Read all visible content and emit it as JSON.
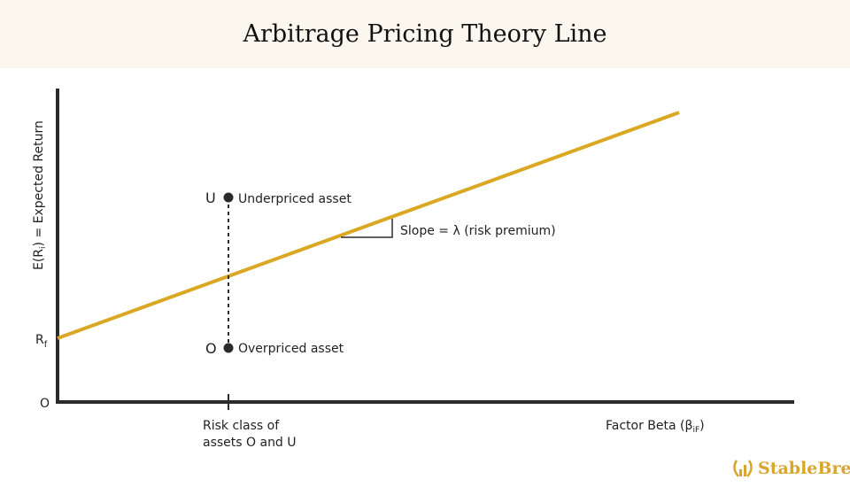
{
  "title": "Arbitrage Pricing Theory Line",
  "y_axis_label": "E(R",
  "y_axis_label_sub": "i",
  "y_axis_label_rest": ") = Expected Return",
  "x_axis_label": "Factor Beta (β",
  "x_axis_label_sub": "iF",
  "x_axis_label_rest": ")",
  "origin_label": "O",
  "rf_label": "R",
  "rf_sub": "f",
  "risk_class_line1": "Risk class of",
  "risk_class_line2": "assets O and U",
  "point_u": {
    "letter": "U",
    "label": "Underpriced asset"
  },
  "point_o": {
    "letter": "O",
    "label": "Overpriced asset"
  },
  "slope_label": "Slope = λ (risk premium)",
  "logo": "StableBread",
  "colors": {
    "line": "#dba823",
    "axis": "#2b2b2b",
    "header_bg": "#fbf6ee",
    "logo": "#d9a52c"
  }
}
